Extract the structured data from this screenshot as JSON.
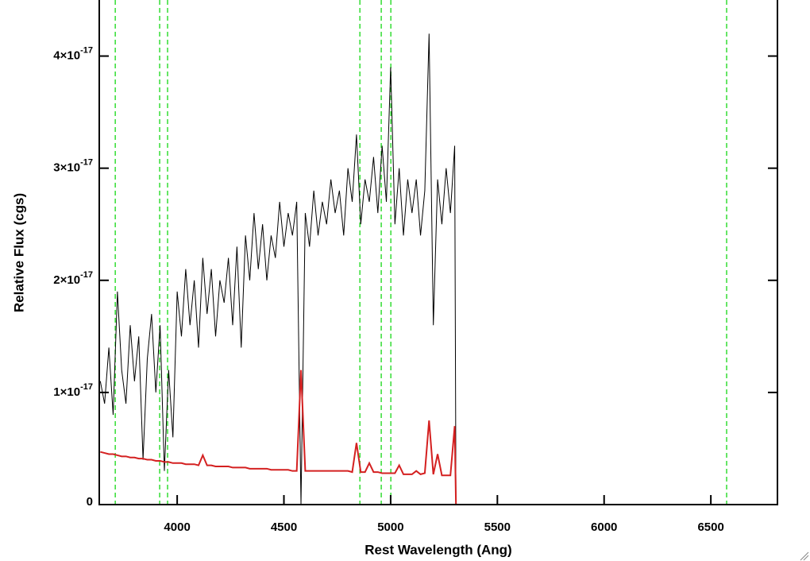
{
  "chart_data": {
    "type": "line",
    "xlabel": "Rest Wavelength (Ang)",
    "ylabel": "Relative Flux (cgs)",
    "xlim": [
      3635,
      6812
    ],
    "ylim": [
      0,
      4.5e-17
    ],
    "xticks": [
      4000,
      4500,
      5000,
      5500,
      6000,
      6500
    ],
    "yticks": [
      0,
      {
        "value": 1e-17,
        "label": "1×10",
        "exponent": "-17"
      },
      {
        "value": 2e-17,
        "label": "2×10",
        "exponent": "-17"
      },
      {
        "value": 3e-17,
        "label": "3×10",
        "exponent": "-17"
      },
      {
        "value": 4e-17,
        "label": "4×10",
        "exponent": "-17"
      }
    ],
    "x": [
      3640,
      3660,
      3680,
      3700,
      3720,
      3740,
      3760,
      3780,
      3800,
      3820,
      3840,
      3860,
      3880,
      3900,
      3920,
      3940,
      3960,
      3980,
      4000,
      4020,
      4040,
      4060,
      4080,
      4100,
      4120,
      4140,
      4160,
      4180,
      4200,
      4220,
      4240,
      4260,
      4280,
      4300,
      4320,
      4340,
      4360,
      4380,
      4400,
      4420,
      4440,
      4460,
      4480,
      4500,
      4520,
      4540,
      4560,
      4580,
      4600,
      4620,
      4640,
      4660,
      4680,
      4700,
      4720,
      4740,
      4760,
      4780,
      4800,
      4820,
      4840,
      4860,
      4880,
      4900,
      4920,
      4940,
      4960,
      4980,
      5000,
      5020,
      5040,
      5060,
      5080,
      5100,
      5120,
      5140,
      5160,
      5180,
      5200,
      5220,
      5240,
      5260,
      5280,
      5300,
      5306,
      6812
    ],
    "series": [
      {
        "color": "#000000",
        "values": [
          1.1e-17,
          9e-18,
          1.4e-17,
          8e-18,
          1.9e-17,
          1.2e-17,
          9e-18,
          1.6e-17,
          1.1e-17,
          1.5e-17,
          4e-18,
          1.3e-17,
          1.7e-17,
          1e-17,
          1.6e-17,
          3e-18,
          1.2e-17,
          6e-18,
          1.9e-17,
          1.5e-17,
          2.1e-17,
          1.6e-17,
          2e-17,
          1.4e-17,
          2.2e-17,
          1.7e-17,
          2.1e-17,
          1.5e-17,
          2e-17,
          1.8e-17,
          2.2e-17,
          1.6e-17,
          2.3e-17,
          1.4e-17,
          2.4e-17,
          2e-17,
          2.6e-17,
          2.1e-17,
          2.5e-17,
          2e-17,
          2.4e-17,
          2.2e-17,
          2.7e-17,
          2.3e-17,
          2.6e-17,
          2.4e-17,
          2.7e-17,
          0,
          2.6e-17,
          2.3e-17,
          2.8e-17,
          2.4e-17,
          2.7e-17,
          2.5e-17,
          2.9e-17,
          2.6e-17,
          2.8e-17,
          2.4e-17,
          3e-17,
          2.7e-17,
          3.3e-17,
          2.5e-17,
          2.9e-17,
          2.7e-17,
          3.1e-17,
          2.6e-17,
          3.2e-17,
          2.7e-17,
          3.9e-17,
          2.5e-17,
          3e-17,
          2.4e-17,
          2.9e-17,
          2.6e-17,
          2.9e-17,
          2.4e-17,
          2.8e-17,
          4.2e-17,
          1.6e-17,
          2.9e-17,
          2.5e-17,
          3e-17,
          2.6e-17,
          3.2e-17,
          0,
          0
        ]
      },
      {
        "color": "#d42020",
        "values": [
          4.7e-18,
          4.6e-18,
          4.5e-18,
          4.5e-18,
          4.4e-18,
          4.3e-18,
          4.3e-18,
          4.2e-18,
          4.2e-18,
          4.1e-18,
          4.1e-18,
          4e-18,
          4e-18,
          3.9e-18,
          3.9e-18,
          3.8e-18,
          3.8e-18,
          3.7e-18,
          3.7e-18,
          3.7e-18,
          3.6e-18,
          3.6e-18,
          3.6e-18,
          3.5e-18,
          4.4e-18,
          3.5e-18,
          3.5e-18,
          3.4e-18,
          3.4e-18,
          3.4e-18,
          3.4e-18,
          3.3e-18,
          3.3e-18,
          3.3e-18,
          3.3e-18,
          3.2e-18,
          3.2e-18,
          3.2e-18,
          3.2e-18,
          3.2e-18,
          3.1e-18,
          3.1e-18,
          3.1e-18,
          3.1e-18,
          3.1e-18,
          3e-18,
          3e-18,
          1.2e-17,
          3e-18,
          3e-18,
          3e-18,
          3e-18,
          3e-18,
          3e-18,
          3e-18,
          3e-18,
          3e-18,
          3e-18,
          3e-18,
          2.9e-18,
          5.5e-18,
          2.9e-18,
          2.9e-18,
          3.7e-18,
          2.9e-18,
          2.9e-18,
          2.8e-18,
          2.8e-18,
          2.8e-18,
          2.8e-18,
          3.5e-18,
          2.7e-18,
          2.7e-18,
          2.7e-18,
          3e-18,
          2.7e-18,
          2.8e-18,
          7.5e-18,
          2.7e-18,
          4.5e-18,
          2.6e-18,
          2.6e-18,
          2.6e-18,
          7e-18,
          0,
          0
        ]
      }
    ],
    "vlines": {
      "color": "#33dd33",
      "values": [
        3710,
        3918,
        3955,
        4856,
        4956,
        5001,
        6574
      ]
    }
  }
}
